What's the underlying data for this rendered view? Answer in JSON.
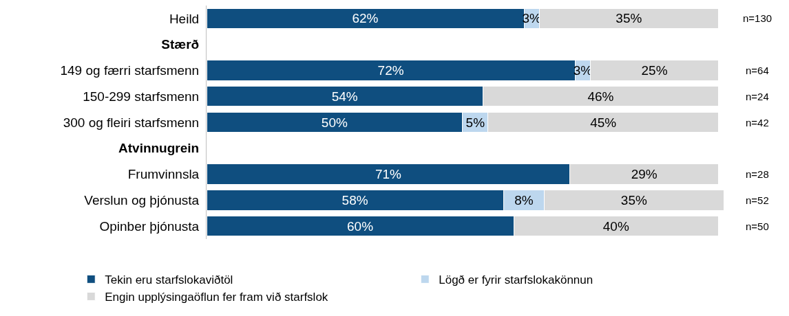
{
  "chart_data": {
    "type": "bar",
    "orientation": "horizontal",
    "stacked": true,
    "categories": [
      "Heild",
      "Stærð",
      "149 og færri starfsmenn",
      "150-299 starfsmenn",
      "300 og fleiri starfsmenn",
      "Atvinnugrein",
      "Frumvinnsla",
      "Verslun og þjónusta",
      "Opinber þjónusta"
    ],
    "xlim": [
      0,
      101
    ],
    "tick_labels": "y",
    "legend": "bottom",
    "series": [
      {
        "name": "Tekin eru starfslokaviðtöl",
        "color": "#0f4e7f",
        "values": [
          62,
          null,
          72,
          54,
          50,
          null,
          71,
          58,
          60
        ],
        "value_labels": [
          "62%",
          null,
          "72%",
          "54%",
          "50%",
          null,
          "71%",
          "58%",
          "60%"
        ]
      },
      {
        "name": "Lögð er fyrir starfslokakönnun",
        "color": "#bdd7ee",
        "values": [
          3,
          null,
          3,
          null,
          5,
          null,
          null,
          8,
          null
        ],
        "value_labels": [
          "3%",
          null,
          "3%",
          null,
          "5%",
          null,
          null,
          "8%",
          null
        ]
      },
      {
        "name": "Engin upplýsingaöflun fer fram við starfslok",
        "color": "#d9d9d9",
        "values": [
          35,
          null,
          25,
          46,
          45,
          null,
          29,
          35,
          40
        ],
        "value_labels": [
          "35%",
          null,
          "25%",
          "46%",
          "45%",
          null,
          "29%",
          "35%",
          "40%"
        ]
      }
    ],
    "annotations": [
      "n=130",
      "n=64",
      "n=24",
      "n=42",
      "n=28",
      "n=52",
      "n=50"
    ]
  }
}
